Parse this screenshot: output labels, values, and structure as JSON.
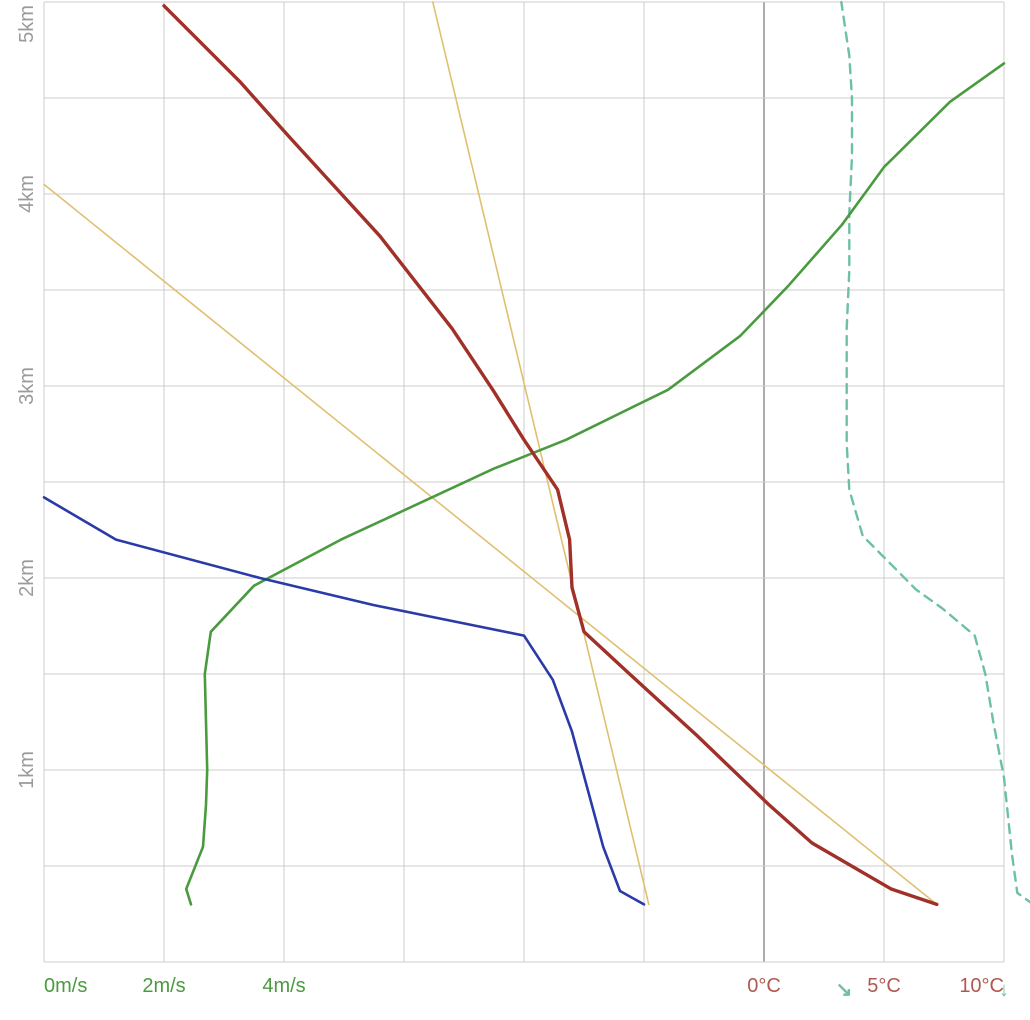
{
  "chart_data": {
    "type": "line",
    "title": "",
    "grid": true,
    "colors": {
      "grid": "#cccccc",
      "zero_line": "#888888",
      "wind_speed": "#4a9a3f",
      "temperature": "#a03028",
      "dew_point": "#2a3aa8",
      "wind_direction": "#6cc0a8",
      "reference": "#e0c070",
      "speed_labels": "#4a9a3f",
      "temp_labels": "#b05850",
      "altitude_labels": "#9a9a9a"
    },
    "altitude_axis": {
      "range_km": [
        0,
        5
      ],
      "tick_labels": [
        {
          "value": 1,
          "label": "1km"
        },
        {
          "value": 2,
          "label": "2km"
        },
        {
          "value": 3,
          "label": "3km"
        },
        {
          "value": 4,
          "label": "4km"
        },
        {
          "value": 5,
          "label": "5km"
        }
      ]
    },
    "wind_speed_axis": {
      "range": [
        0,
        16
      ],
      "tick_labels": [
        {
          "value": 0,
          "label": "0m/s"
        },
        {
          "value": 2,
          "label": "2m/s"
        },
        {
          "value": 4,
          "label": "4m/s"
        }
      ]
    },
    "wind_direction_axis": {
      "range_deg": [
        0,
        360
      ],
      "tick_arrows": [
        {
          "value": 300,
          "icon": "arrow-down-right-icon",
          "glyph": "↘"
        },
        {
          "value": 360,
          "icon": "arrow-down-icon",
          "glyph": "↓"
        },
        {
          "value": 420,
          "icon": "arrow-down-left-icon",
          "glyph": "↙"
        }
      ]
    },
    "temperature_axis": {
      "range_c": [
        -30,
        10
      ],
      "tick_labels": [
        {
          "value": 0,
          "label": "0°C"
        },
        {
          "value": 5,
          "label": "5°C"
        },
        {
          "value": 10,
          "label": "10°C"
        }
      ]
    },
    "series": [
      {
        "key": "wind_speed",
        "axis": "speed",
        "dashed": false,
        "points": [
          [
            2.45,
            0.3
          ],
          [
            2.37,
            0.38
          ],
          [
            2.65,
            0.6
          ],
          [
            2.7,
            0.82
          ],
          [
            2.72,
            1.0
          ],
          [
            2.68,
            1.5
          ],
          [
            2.78,
            1.72
          ],
          [
            3.5,
            1.96
          ],
          [
            4.95,
            2.2
          ],
          [
            7.5,
            2.57
          ],
          [
            8.7,
            2.72
          ],
          [
            10.4,
            2.98
          ],
          [
            11.6,
            3.26
          ],
          [
            12.4,
            3.52
          ],
          [
            13.3,
            3.84
          ],
          [
            14.0,
            4.14
          ],
          [
            15.1,
            4.48
          ],
          [
            16.0,
            4.68
          ]
        ]
      },
      {
        "key": "temperature",
        "axis": "temperature",
        "dashed": false,
        "points": [
          [
            7.2,
            0.3
          ],
          [
            5.3,
            0.38
          ],
          [
            2.0,
            0.62
          ],
          [
            0.2,
            0.82
          ],
          [
            -2.8,
            1.18
          ],
          [
            -5.6,
            1.5
          ],
          [
            -7.5,
            1.72
          ],
          [
            -8.0,
            1.95
          ],
          [
            -8.1,
            2.2
          ],
          [
            -8.6,
            2.46
          ],
          [
            -10.0,
            2.72
          ],
          [
            -11.3,
            2.98
          ],
          [
            -13.0,
            3.3
          ],
          [
            -16.0,
            3.78
          ],
          [
            -19.8,
            4.3
          ],
          [
            -21.8,
            4.58
          ],
          [
            -23.4,
            4.78
          ],
          [
            -25.0,
            4.98
          ]
        ]
      },
      {
        "key": "dew_point",
        "axis": "temperature",
        "dashed": false,
        "points": [
          [
            -5.0,
            0.3
          ],
          [
            -6.0,
            0.37
          ],
          [
            -6.7,
            0.6
          ],
          [
            -8.0,
            1.2
          ],
          [
            -8.8,
            1.47
          ],
          [
            -10.0,
            1.7
          ],
          [
            -16.3,
            1.86
          ],
          [
            -21.0,
            2.0
          ],
          [
            -27.0,
            2.2
          ],
          [
            -30.0,
            2.42
          ]
        ]
      },
      {
        "key": "wind_direction",
        "axis": "direction",
        "dashed": true,
        "points": [
          [
            371,
            0.3
          ],
          [
            365,
            0.36
          ],
          [
            363,
            0.56
          ],
          [
            360,
            0.96
          ],
          [
            356,
            1.25
          ],
          [
            353,
            1.5
          ],
          [
            349,
            1.7
          ],
          [
            337,
            1.84
          ],
          [
            327,
            1.94
          ],
          [
            317,
            2.08
          ],
          [
            307,
            2.22
          ],
          [
            302,
            2.46
          ],
          [
            301,
            2.7
          ],
          [
            301,
            3.0
          ],
          [
            301,
            3.3
          ],
          [
            302,
            3.6
          ],
          [
            302,
            3.9
          ],
          [
            303,
            4.2
          ],
          [
            303,
            4.5
          ],
          [
            302,
            4.72
          ],
          [
            299,
            5.0
          ]
        ]
      },
      {
        "key": "reference_1",
        "axis": "temperature",
        "dashed": false,
        "points": [
          [
            7.2,
            0.3
          ],
          [
            -30.0,
            4.05
          ]
        ]
      },
      {
        "key": "reference_2",
        "axis": "temperature",
        "dashed": false,
        "points": [
          [
            -4.8,
            0.3
          ],
          [
            -13.8,
            5.0
          ]
        ]
      }
    ]
  }
}
